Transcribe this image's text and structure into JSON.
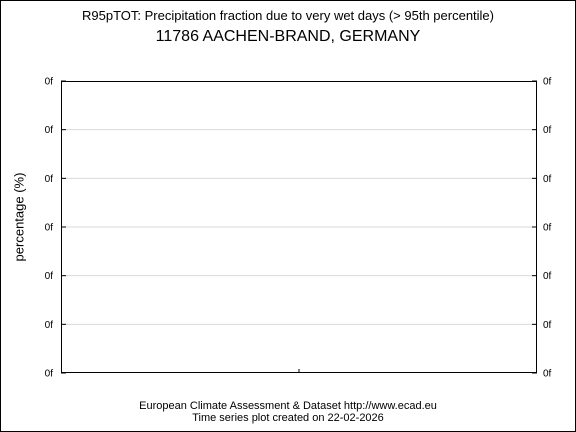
{
  "chart_data": {
    "type": "line",
    "title": "R95pTOT: Precipitation fraction due to very wet days (> 95th percentile)",
    "subtitle": "11786 AACHEN-BRAND, GERMANY",
    "ylabel": "percentage (%)",
    "xlabel": "",
    "y_tick_labels": [
      "0f",
      "0f",
      "0f",
      "0f",
      "0f",
      "0f",
      "0f"
    ],
    "y2_tick_labels": [
      "0f",
      "0f",
      "0f",
      "0f",
      "0f",
      "0f",
      "0f"
    ],
    "x_tick_labels": [],
    "series": [],
    "grid": true
  },
  "footer": {
    "line1": "European Climate Assessment & Dataset  http://www.ecad.eu",
    "line2": "Time series plot created on 22-02-2026"
  },
  "colors": {
    "frame": "#000000",
    "grid": "#d9d9d9",
    "background": "#ffffff"
  }
}
